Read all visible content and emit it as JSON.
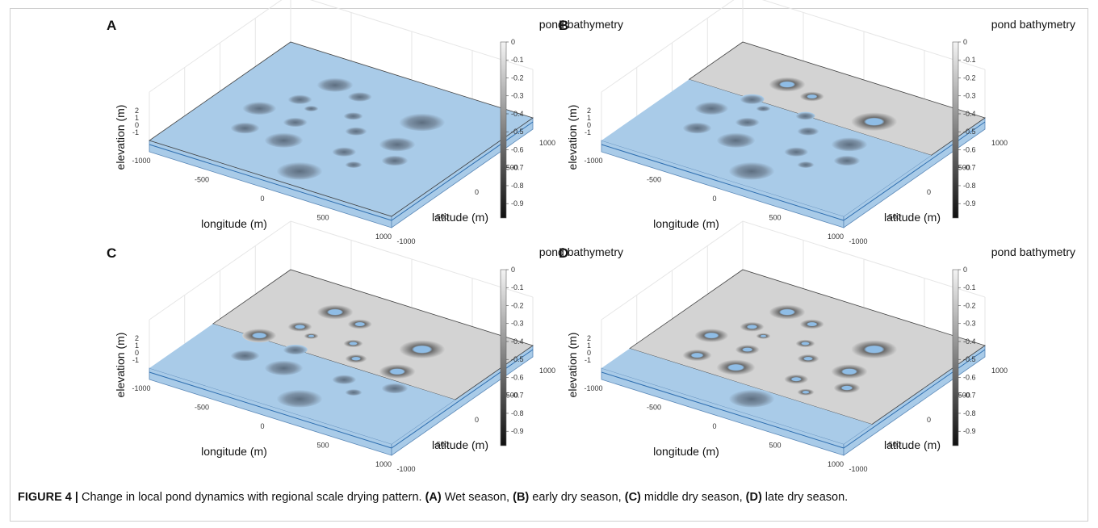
{
  "figure": {
    "label": "FIGURE 4 |",
    "text": " Change in local pond dynamics with regional scale drying pattern. ",
    "panels_desc": [
      {
        "tag": "(A)",
        "text": " Wet season, "
      },
      {
        "tag": "(B)",
        "text": " early dry season, "
      },
      {
        "tag": "(C)",
        "text": " middle dry season, "
      },
      {
        "tag": "(D)",
        "text": " late dry season."
      }
    ]
  },
  "colorbar": {
    "title": "pond bathymetry",
    "ticks": [
      "0",
      "-0.1",
      "-0.2",
      "-0.3",
      "-0.4",
      "-0.5",
      "-0.6",
      "-0.7",
      "-0.8",
      "-0.9"
    ]
  },
  "axes": {
    "xlabel": "longitude (m)",
    "ylabel": "latitude (m)",
    "zlabel": "elevation (m)",
    "x_ticks": [
      "-1000",
      "-500",
      "0",
      "500",
      "1000"
    ],
    "y_ticks": [
      "-1000",
      "-500",
      "0",
      "500",
      "1000"
    ],
    "z_ticks": [
      "2",
      "1",
      "0",
      "-1"
    ]
  },
  "colors": {
    "water": "#a9cbe8",
    "dry": "#d3d3d3",
    "pond_deep": "#5f6f80"
  },
  "panels": [
    {
      "label": "A",
      "water_fraction": 1.0
    },
    {
      "label": "B",
      "water_fraction": 0.62
    },
    {
      "label": "C",
      "water_fraction": 0.45
    },
    {
      "label": "D",
      "water_fraction": 0.2
    }
  ]
}
